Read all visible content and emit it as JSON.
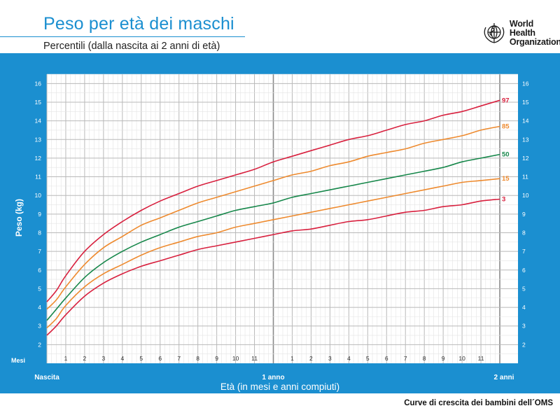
{
  "header": {
    "title": "Peso per età dei maschi",
    "subtitle": "Percentili (dalla nascita ai 2 anni di età)",
    "logo_line1": "World Health",
    "logo_line2": "Organization"
  },
  "footer": {
    "note": "Curve di crescita dei bambini dell´OMS"
  },
  "colors": {
    "background": "#1b8fd0",
    "plot": "#ffffff",
    "grid": "#b9b9b9",
    "p97": "#d8203e",
    "p85": "#ee8a2e",
    "p50": "#16874a",
    "p15": "#ee8a2e",
    "p3": "#d8203e"
  },
  "chart_data": {
    "type": "line",
    "title": "Peso per età dei maschi",
    "xlabel": "Età (in mesi e anni compiuti)",
    "ylabel": "Peso (kg)",
    "xlim": [
      0,
      24
    ],
    "ylim": [
      1,
      16.5
    ],
    "yticks": [
      2,
      3,
      4,
      5,
      6,
      7,
      8,
      9,
      10,
      11,
      12,
      13,
      14,
      15,
      16
    ],
    "months_label": "Mesi",
    "x_tick_labels": [
      {
        "x": 0,
        "label": "Nascita"
      },
      {
        "x": 1,
        "label": "1"
      },
      {
        "x": 2,
        "label": "2"
      },
      {
        "x": 3,
        "label": "3"
      },
      {
        "x": 4,
        "label": "4"
      },
      {
        "x": 5,
        "label": "5"
      },
      {
        "x": 6,
        "label": "6"
      },
      {
        "x": 7,
        "label": "7"
      },
      {
        "x": 8,
        "label": "8"
      },
      {
        "x": 9,
        "label": "9"
      },
      {
        "x": 10,
        "label": "10"
      },
      {
        "x": 11,
        "label": "11"
      },
      {
        "x": 12,
        "label": "1 anno"
      },
      {
        "x": 13,
        "label": "1"
      },
      {
        "x": 14,
        "label": "2"
      },
      {
        "x": 15,
        "label": "3"
      },
      {
        "x": 16,
        "label": "4"
      },
      {
        "x": 17,
        "label": "5"
      },
      {
        "x": 18,
        "label": "6"
      },
      {
        "x": 19,
        "label": "7"
      },
      {
        "x": 20,
        "label": "8"
      },
      {
        "x": 21,
        "label": "9"
      },
      {
        "x": 22,
        "label": "10"
      },
      {
        "x": 23,
        "label": "11"
      },
      {
        "x": 24,
        "label": "2 anni"
      }
    ],
    "x": [
      0,
      0.5,
      1,
      2,
      3,
      4,
      5,
      6,
      7,
      8,
      9,
      10,
      11,
      12,
      13,
      14,
      15,
      16,
      17,
      18,
      19,
      20,
      21,
      22,
      23,
      24
    ],
    "series": [
      {
        "name": "97",
        "color_key": "p97",
        "values": [
          4.3,
          4.9,
          5.7,
          7.0,
          7.9,
          8.6,
          9.2,
          9.7,
          10.1,
          10.5,
          10.8,
          11.1,
          11.4,
          11.8,
          12.1,
          12.4,
          12.7,
          13.0,
          13.2,
          13.5,
          13.8,
          14.0,
          14.3,
          14.5,
          14.8,
          15.1
        ]
      },
      {
        "name": "85",
        "color_key": "p85",
        "values": [
          3.9,
          4.4,
          5.1,
          6.3,
          7.2,
          7.8,
          8.4,
          8.8,
          9.2,
          9.6,
          9.9,
          10.2,
          10.5,
          10.8,
          11.1,
          11.3,
          11.6,
          11.8,
          12.1,
          12.3,
          12.5,
          12.8,
          13.0,
          13.2,
          13.5,
          13.7
        ]
      },
      {
        "name": "50",
        "color_key": "p50",
        "values": [
          3.3,
          3.9,
          4.5,
          5.6,
          6.4,
          7.0,
          7.5,
          7.9,
          8.3,
          8.6,
          8.9,
          9.2,
          9.4,
          9.6,
          9.9,
          10.1,
          10.3,
          10.5,
          10.7,
          10.9,
          11.1,
          11.3,
          11.5,
          11.8,
          12.0,
          12.2
        ]
      },
      {
        "name": "15",
        "color_key": "p15",
        "values": [
          2.9,
          3.4,
          4.1,
          5.1,
          5.8,
          6.3,
          6.8,
          7.2,
          7.5,
          7.8,
          8.0,
          8.3,
          8.5,
          8.7,
          8.9,
          9.1,
          9.3,
          9.5,
          9.7,
          9.9,
          10.1,
          10.3,
          10.5,
          10.7,
          10.8,
          10.9
        ]
      },
      {
        "name": "3",
        "color_key": "p3",
        "values": [
          2.5,
          3.0,
          3.6,
          4.6,
          5.3,
          5.8,
          6.2,
          6.5,
          6.8,
          7.1,
          7.3,
          7.5,
          7.7,
          7.9,
          8.1,
          8.2,
          8.4,
          8.6,
          8.7,
          8.9,
          9.1,
          9.2,
          9.4,
          9.5,
          9.7,
          9.8
        ]
      }
    ]
  }
}
